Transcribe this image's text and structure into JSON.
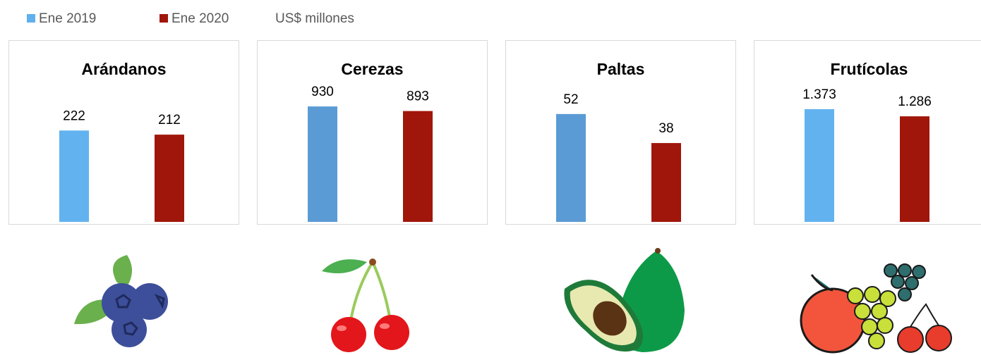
{
  "legend": {
    "items": [
      {
        "name": "Ene 2019",
        "color": "#5fb0ec"
      },
      {
        "name": "Ene 2020",
        "color": "#a0160a"
      }
    ],
    "unit": "US$ millones"
  },
  "chart_data": [
    {
      "type": "bar",
      "title": "Arándanos",
      "values": [
        222,
        212
      ],
      "colors": [
        "#62b2ef",
        "#a0160a"
      ],
      "ylim": [
        0,
        368
      ]
    },
    {
      "type": "bar",
      "title": "Cerezas",
      "values": [
        930,
        893
      ],
      "colors": [
        "#5b9bd5",
        "#a0160a"
      ],
      "ylim": [
        0,
        1220
      ]
    },
    {
      "type": "bar",
      "title": "Paltas",
      "values": [
        52,
        38
      ],
      "colors": [
        "#5b9bd5",
        "#a0160a"
      ],
      "ylim": [
        0,
        73
      ]
    },
    {
      "type": "bar",
      "title": "Frutícolas",
      "values": [
        1373,
        1286
      ],
      "value_labels": [
        "1.373",
        "1.286"
      ],
      "colors": [
        "#62b2ef",
        "#a0160a"
      ],
      "ylim": [
        0,
        1845
      ]
    }
  ]
}
